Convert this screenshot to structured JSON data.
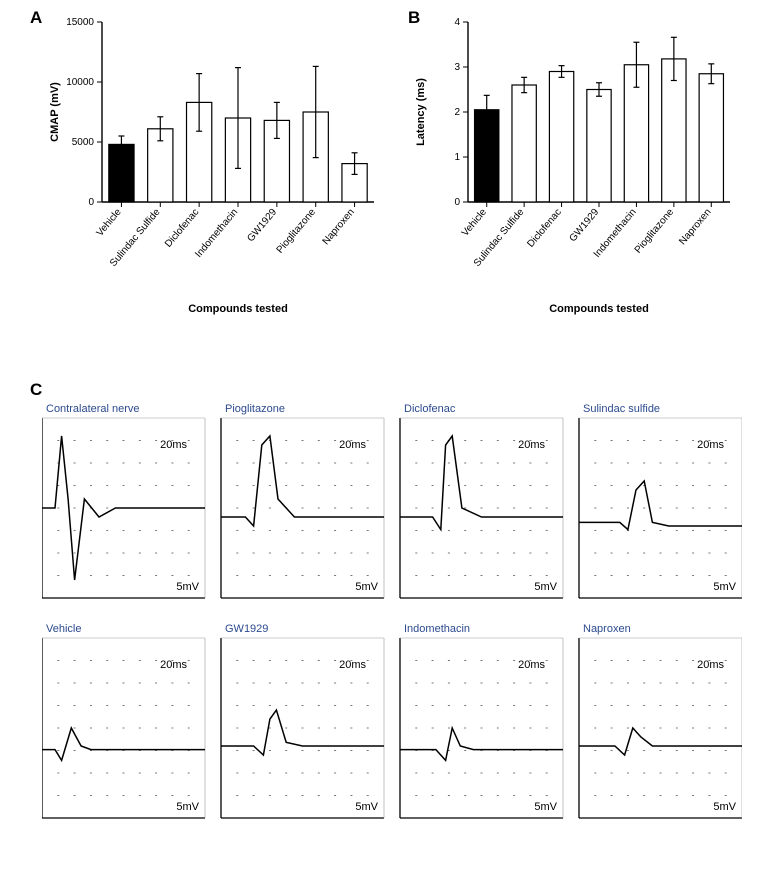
{
  "panel_labels": {
    "A": "A",
    "B": "B",
    "C": "C"
  },
  "chart_a": {
    "type": "bar",
    "categories": [
      "Vehicle",
      "Sulindac Sulfide",
      "Diclofenac",
      "Indomethacin",
      "GW1929",
      "Pioglitazone",
      "Naproxen"
    ],
    "values": [
      4800,
      6100,
      8300,
      7000,
      6800,
      7500,
      3200
    ],
    "err": [
      700,
      1000,
      2400,
      4200,
      1500,
      3800,
      900
    ],
    "vehicle_fill": "#000000",
    "other_fill": "#ffffff",
    "stroke": "#000000",
    "ylabel": "CMAP (mV)",
    "xlabel": "Compounds tested",
    "ylim": [
      0,
      15000
    ],
    "yticks": [
      0,
      5000,
      10000,
      15000
    ],
    "label_fontsize": 11,
    "tick_fontsize": 10,
    "bar_width": 0.65,
    "grid": false,
    "error_cap_width": 6
  },
  "chart_b": {
    "type": "bar",
    "categories": [
      "Vehicle",
      "Sulindac Sulfide",
      "Diclofenac",
      "GW1929",
      "Indomethacin",
      "Pioglitazone",
      "Naproxen"
    ],
    "values": [
      2.05,
      2.6,
      2.9,
      2.5,
      3.05,
      3.18,
      2.85
    ],
    "err": [
      0.32,
      0.17,
      0.13,
      0.15,
      0.5,
      0.48,
      0.22
    ],
    "vehicle_fill": "#000000",
    "other_fill": "#ffffff",
    "stroke": "#000000",
    "ylabel": "Latency (ms)",
    "xlabel": "Compounds tested",
    "ylim": [
      0,
      4
    ],
    "yticks": [
      0,
      1,
      2,
      3,
      4
    ],
    "label_fontsize": 11,
    "tick_fontsize": 10,
    "bar_width": 0.65,
    "grid": false,
    "error_cap_width": 6
  },
  "traces": {
    "grid_cols": 10,
    "grid_rows": 8,
    "x_scale_label": "20ms",
    "y_scale_label": "5mV",
    "stroke": "#000000",
    "dash_color": "#555555",
    "title_color": "#2b4a8f",
    "panels": [
      {
        "title": "Contralateral nerve",
        "row": 0,
        "col": 0,
        "path": [
          [
            0,
            0.5
          ],
          [
            0.08,
            0.5
          ],
          [
            0.12,
            0.1
          ],
          [
            0.16,
            0.45
          ],
          [
            0.2,
            0.9
          ],
          [
            0.26,
            0.45
          ],
          [
            0.35,
            0.55
          ],
          [
            0.45,
            0.5
          ],
          [
            1,
            0.5
          ]
        ]
      },
      {
        "title": "Pioglitazone",
        "row": 0,
        "col": 1,
        "path": [
          [
            0,
            0.55
          ],
          [
            0.15,
            0.55
          ],
          [
            0.2,
            0.6
          ],
          [
            0.25,
            0.15
          ],
          [
            0.3,
            0.1
          ],
          [
            0.35,
            0.45
          ],
          [
            0.45,
            0.55
          ],
          [
            1,
            0.55
          ]
        ]
      },
      {
        "title": "Diclofenac",
        "row": 0,
        "col": 2,
        "path": [
          [
            0,
            0.55
          ],
          [
            0.2,
            0.55
          ],
          [
            0.25,
            0.62
          ],
          [
            0.28,
            0.15
          ],
          [
            0.32,
            0.1
          ],
          [
            0.38,
            0.5
          ],
          [
            0.5,
            0.55
          ],
          [
            1,
            0.55
          ]
        ]
      },
      {
        "title": "Sulindac sulfide",
        "row": 0,
        "col": 3,
        "path": [
          [
            0,
            0.58
          ],
          [
            0.25,
            0.58
          ],
          [
            0.3,
            0.62
          ],
          [
            0.35,
            0.4
          ],
          [
            0.4,
            0.35
          ],
          [
            0.45,
            0.58
          ],
          [
            0.55,
            0.6
          ],
          [
            1,
            0.6
          ]
        ]
      },
      {
        "title": "Vehicle",
        "row": 1,
        "col": 0,
        "path": [
          [
            0,
            0.62
          ],
          [
            0.08,
            0.62
          ],
          [
            0.12,
            0.68
          ],
          [
            0.18,
            0.5
          ],
          [
            0.24,
            0.6
          ],
          [
            0.3,
            0.62
          ],
          [
            1,
            0.62
          ]
        ]
      },
      {
        "title": "GW1929",
        "row": 1,
        "col": 1,
        "path": [
          [
            0,
            0.6
          ],
          [
            0.2,
            0.6
          ],
          [
            0.26,
            0.65
          ],
          [
            0.3,
            0.45
          ],
          [
            0.34,
            0.4
          ],
          [
            0.4,
            0.58
          ],
          [
            0.5,
            0.6
          ],
          [
            1,
            0.6
          ]
        ]
      },
      {
        "title": "Indomethacin",
        "row": 1,
        "col": 2,
        "path": [
          [
            0,
            0.62
          ],
          [
            0.22,
            0.62
          ],
          [
            0.28,
            0.68
          ],
          [
            0.32,
            0.5
          ],
          [
            0.37,
            0.6
          ],
          [
            0.45,
            0.62
          ],
          [
            1,
            0.62
          ]
        ]
      },
      {
        "title": "Naproxen",
        "row": 1,
        "col": 3,
        "path": [
          [
            0,
            0.6
          ],
          [
            0.22,
            0.6
          ],
          [
            0.28,
            0.65
          ],
          [
            0.33,
            0.5
          ],
          [
            0.38,
            0.55
          ],
          [
            0.45,
            0.6
          ],
          [
            1,
            0.6
          ]
        ]
      }
    ]
  }
}
